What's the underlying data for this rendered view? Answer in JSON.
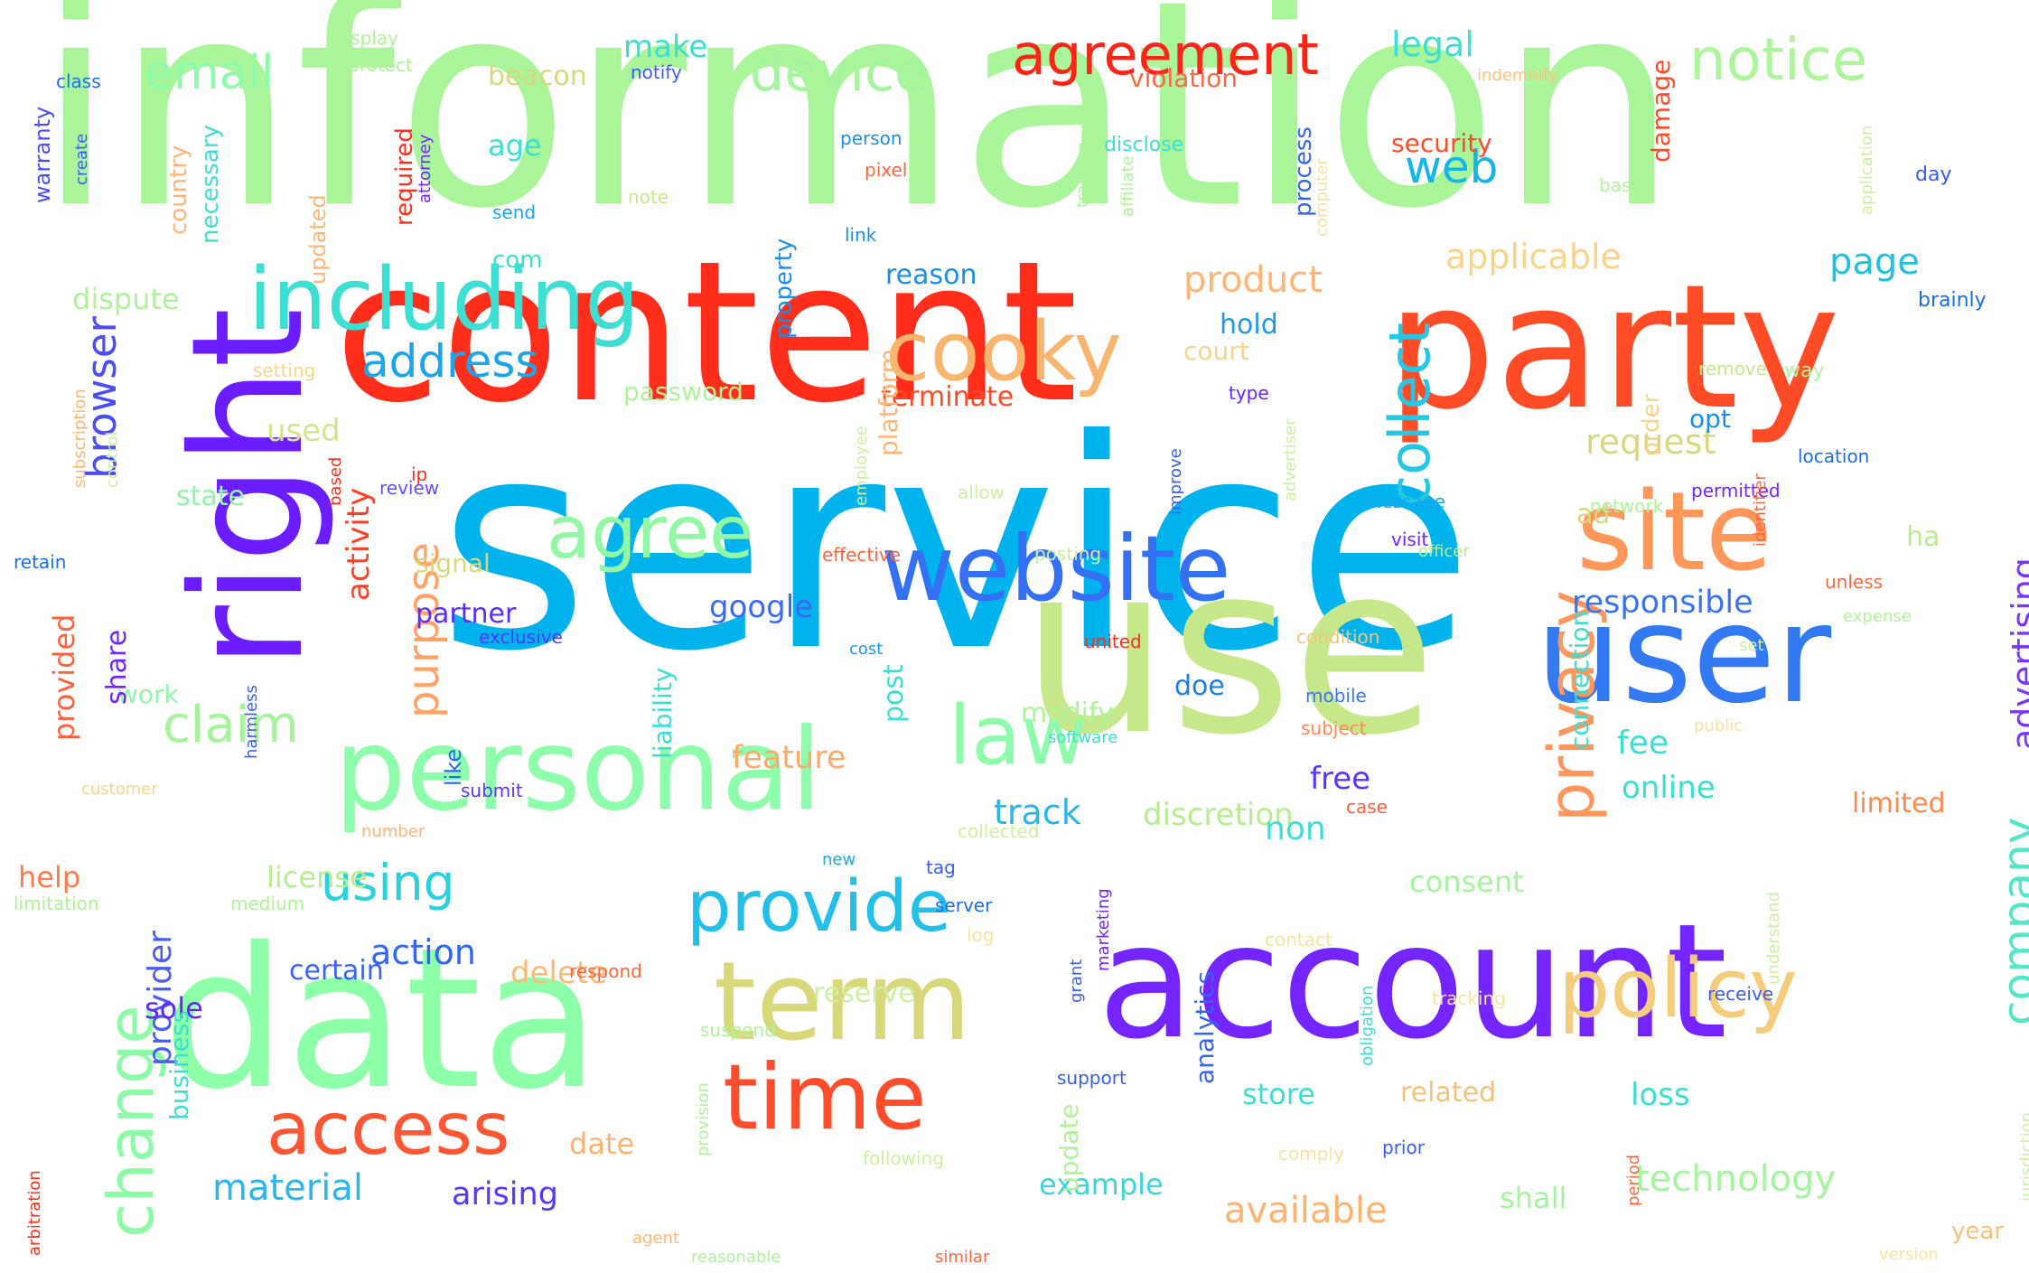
{
  "words": [
    {
      "text": "information",
      "color": "#aaf59a",
      "weight": 100
    },
    {
      "text": "service",
      "color": "#00b3ec",
      "weight": 98
    },
    {
      "text": "content",
      "color": "#ff2d1a",
      "weight": 80
    },
    {
      "text": "use",
      "color": "#c6e88a",
      "weight": 78
    },
    {
      "text": "data",
      "color": "#8effa9",
      "weight": 70
    },
    {
      "text": "account",
      "color": "#7424ff",
      "weight": 66
    },
    {
      "text": "party",
      "color": "#ff4c26",
      "weight": 64
    },
    {
      "text": "right",
      "color": "#6b1dff",
      "weight": 64
    },
    {
      "text": "user",
      "color": "#3279f2",
      "weight": 52
    },
    {
      "text": "personal",
      "color": "#8dfcab",
      "weight": 42
    },
    {
      "text": "site",
      "color": "#ff965a",
      "weight": 40
    },
    {
      "text": "website",
      "color": "#3370f4",
      "weight": 36
    },
    {
      "text": "term",
      "color": "#d8d87a",
      "weight": 40
    },
    {
      "text": "including",
      "color": "#3ddfd2",
      "weight": 34
    },
    {
      "text": "cooky",
      "color": "#f8b56e",
      "weight": 32
    },
    {
      "text": "time",
      "color": "#ff4c2a",
      "weight": 34
    },
    {
      "text": "policy",
      "color": "#f4cd7c",
      "weight": 30
    },
    {
      "text": "access",
      "color": "#ff5633",
      "weight": 28
    },
    {
      "text": "law",
      "color": "#8dfbab",
      "weight": 30
    },
    {
      "text": "agree",
      "color": "#92f7a4",
      "weight": 28
    },
    {
      "text": "provide",
      "color": "#22c0e8",
      "weight": 26
    },
    {
      "text": "change",
      "color": "#8dfaa8",
      "weight": 26
    },
    {
      "text": "privacy",
      "color": "#ff965c",
      "weight": 24
    },
    {
      "text": "collect",
      "color": "#24c8e4",
      "weight": 22
    },
    {
      "text": "agreement",
      "color": "#ff2516",
      "weight": 22
    },
    {
      "text": "device",
      "color": "#a4f59d",
      "weight": 22
    },
    {
      "text": "notice",
      "color": "#adf59a",
      "weight": 22
    },
    {
      "text": "email",
      "color": "#8dfbab",
      "weight": 18
    },
    {
      "text": "company",
      "color": "#52e7c7",
      "weight": 18
    },
    {
      "text": "address",
      "color": "#1aa6ec",
      "weight": 18
    },
    {
      "text": "claim",
      "color": "#a5f49c",
      "weight": 18
    },
    {
      "text": "using",
      "color": "#2bd1dc",
      "weight": 18
    },
    {
      "text": "browser",
      "color": "#4a4df9",
      "weight": 18
    },
    {
      "text": "purpose",
      "color": "#ffa466",
      "weight": 16
    },
    {
      "text": "web",
      "color": "#12b6ea",
      "weight": 16
    },
    {
      "text": "advertising",
      "color": "#7d33ff",
      "weight": 14
    },
    {
      "text": "technology",
      "color": "#a4f59d",
      "weight": 14
    },
    {
      "text": "available",
      "color": "#ffb370",
      "weight": 14
    },
    {
      "text": "material",
      "color": "#2eb6ec",
      "weight": 14
    },
    {
      "text": "product",
      "color": "#ffb575",
      "weight": 14
    },
    {
      "text": "applicable",
      "color": "#f6d48a",
      "weight": 14
    },
    {
      "text": "request",
      "color": "#d9d77e",
      "weight": 14
    },
    {
      "text": "responsible",
      "color": "#3a73f1",
      "weight": 12
    },
    {
      "text": "activity",
      "color": "#ff3e24",
      "weight": 12
    },
    {
      "text": "feature",
      "color": "#ffa966",
      "weight": 12
    },
    {
      "text": "track",
      "color": "#2db5ea",
      "weight": 12
    },
    {
      "text": "action",
      "color": "#3466f2",
      "weight": 12
    },
    {
      "text": "page",
      "color": "#24c0e2",
      "weight": 12
    },
    {
      "text": "provider",
      "color": "#4a5cf6",
      "weight": 12
    },
    {
      "text": "discretion",
      "color": "#b7ec90",
      "weight": 12
    },
    {
      "text": "arising",
      "color": "#5a34ff",
      "weight": 12
    },
    {
      "text": "example",
      "color": "#3fd5d6",
      "weight": 12
    },
    {
      "text": "shall",
      "color": "#a4f59d",
      "weight": 12
    },
    {
      "text": "date",
      "color": "#ffb270",
      "weight": 10
    },
    {
      "text": "certain",
      "color": "#3a64f2",
      "weight": 10
    },
    {
      "text": "delete",
      "color": "#ffb972",
      "weight": 10
    },
    {
      "text": "reserve",
      "color": "#ccefa0",
      "weight": 10
    },
    {
      "text": "google",
      "color": "#3a6af2",
      "weight": 10
    },
    {
      "text": "partner",
      "color": "#5b2bff",
      "weight": 10
    },
    {
      "text": "legal",
      "color": "#3ddfd2",
      "weight": 10
    },
    {
      "text": "make",
      "color": "#3ddfd2",
      "weight": 10
    },
    {
      "text": "security",
      "color": "#ff4a28",
      "weight": 9
    },
    {
      "text": "age",
      "color": "#3ddfd2",
      "weight": 9
    },
    {
      "text": "reason",
      "color": "#1a8ee8",
      "weight": 9
    },
    {
      "text": "hold",
      "color": "#1f98ea",
      "weight": 9
    },
    {
      "text": "court",
      "color": "#f6d48a",
      "weight": 9
    },
    {
      "text": "terminate",
      "color": "#ff4a28",
      "weight": 9
    },
    {
      "text": "password",
      "color": "#aef39a",
      "weight": 9
    },
    {
      "text": "state",
      "color": "#8ff6aa",
      "weight": 9
    },
    {
      "text": "used",
      "color": "#d0e58a",
      "weight": 9
    },
    {
      "text": "dispute",
      "color": "#aef39a",
      "weight": 9
    },
    {
      "text": "beacon",
      "color": "#d8d67e",
      "weight": 9
    },
    {
      "text": "violation",
      "color": "#ff6640",
      "weight": 9
    },
    {
      "text": "com",
      "color": "#3ddfd2",
      "weight": 9
    },
    {
      "text": "opt",
      "color": "#1a8ee8",
      "weight": 9
    },
    {
      "text": "ad",
      "color": "#d9d77e",
      "weight": 9
    },
    {
      "text": "ha",
      "color": "#b7ec90",
      "weight": 9
    },
    {
      "text": "doe",
      "color": "#1b7ee8",
      "weight": 9
    },
    {
      "text": "fee",
      "color": "#3ddfd2",
      "weight": 9
    },
    {
      "text": "free",
      "color": "#5a34ff",
      "weight": 9
    },
    {
      "text": "online",
      "color": "#3ddfd2",
      "weight": 9
    },
    {
      "text": "limited",
      "color": "#ff8a50",
      "weight": 8
    },
    {
      "text": "loss",
      "color": "#3ddfd2",
      "weight": 9
    },
    {
      "text": "related",
      "color": "#f4c27a",
      "weight": 8
    },
    {
      "text": "store",
      "color": "#3ddfd2",
      "weight": 8
    },
    {
      "text": "sole",
      "color": "#6424ff",
      "weight": 8
    },
    {
      "text": "help",
      "color": "#ff7b4a",
      "weight": 8
    },
    {
      "text": "license",
      "color": "#b7ec90",
      "weight": 8
    },
    {
      "text": "non",
      "color": "#3ddfd2",
      "weight": 9
    },
    {
      "text": "consent",
      "color": "#a4f59d",
      "weight": 9
    },
    {
      "text": "modify",
      "color": "#aef39a",
      "weight": 8
    },
    {
      "text": "like",
      "color": "#1a6ef0",
      "weight": 7
    },
    {
      "text": "signal",
      "color": "#d9d77e",
      "weight": 7
    },
    {
      "text": "work",
      "color": "#8ff6aa",
      "weight": 7
    },
    {
      "text": "year",
      "color": "#f4c27a",
      "weight": 7
    },
    {
      "text": "submit",
      "color": "#5a34ff",
      "weight": 5
    },
    {
      "text": "software",
      "color": "#3ddfd2",
      "weight": 5
    },
    {
      "text": "mobile",
      "color": "#3a73f1",
      "weight": 5
    },
    {
      "text": "subject",
      "color": "#ff8a50",
      "weight": 5
    },
    {
      "text": "public",
      "color": "#f6e2a0",
      "weight": 5
    },
    {
      "text": "case",
      "color": "#ff5f3a",
      "weight": 5
    },
    {
      "text": "cost",
      "color": "#1f98ea",
      "weight": 5
    },
    {
      "text": "exclusive",
      "color": "#5a34ff",
      "weight": 5
    },
    {
      "text": "united",
      "color": "#ff2d1a",
      "weight": 5
    },
    {
      "text": "condition",
      "color": "#f4c27a",
      "weight": 5
    },
    {
      "text": "effective",
      "color": "#ff6640",
      "weight": 5
    },
    {
      "text": "posting",
      "color": "#ccefa0",
      "weight": 5
    },
    {
      "text": "visit",
      "color": "#7424ff",
      "weight": 5
    },
    {
      "text": "officer",
      "color": "#b7ec90",
      "weight": 5
    },
    {
      "text": "message",
      "color": "#1aa6ec",
      "weight": 5
    },
    {
      "text": "network",
      "color": "#aef39a",
      "weight": 5
    },
    {
      "text": "permitted",
      "color": "#7424ff",
      "weight": 5
    },
    {
      "text": "location",
      "color": "#1a6ef0",
      "weight": 5
    },
    {
      "text": "allow",
      "color": "#ccefa0",
      "weight": 5
    },
    {
      "text": "review",
      "color": "#6a4cff",
      "weight": 5
    },
    {
      "text": "ip",
      "color": "#ff2d1a",
      "weight": 5
    },
    {
      "text": "type",
      "color": "#6424ff",
      "weight": 5
    },
    {
      "text": "setting",
      "color": "#f6d48a",
      "weight": 5
    },
    {
      "text": "remove",
      "color": "#c6e88a",
      "weight": 5
    },
    {
      "text": "way",
      "color": "#aef39a",
      "weight": 5
    },
    {
      "text": "brainly",
      "color": "#1a6ef0",
      "weight": 5
    },
    {
      "text": "day",
      "color": "#3a5ef2",
      "weight": 5
    },
    {
      "text": "basis",
      "color": "#aef39a",
      "weight": 5
    },
    {
      "text": "disclose",
      "color": "#3ddfd2",
      "weight": 5
    },
    {
      "text": "person",
      "color": "#1a8ee8",
      "weight": 5
    },
    {
      "text": "pixel",
      "color": "#ff6640",
      "weight": 5
    },
    {
      "text": "note",
      "color": "#c6e88a",
      "weight": 5
    },
    {
      "text": "link",
      "color": "#1a8ee8",
      "weight": 5
    },
    {
      "text": "send",
      "color": "#1aa6ec",
      "weight": 5
    },
    {
      "text": "class",
      "color": "#1a6ef0",
      "weight": 5
    },
    {
      "text": "display",
      "color": "#aef39a",
      "weight": 5
    },
    {
      "text": "protect",
      "color": "#aef39a",
      "weight": 5
    },
    {
      "text": "notify",
      "color": "#3a5ef2",
      "weight": 5
    },
    {
      "text": "indemnify",
      "color": "#ffc082",
      "weight": 5
    },
    {
      "text": "retain",
      "color": "#1a6ef0",
      "weight": 5
    },
    {
      "text": "customer",
      "color": "#f6d48a",
      "weight": 5
    },
    {
      "text": "number",
      "color": "#ffb575",
      "weight": 5
    },
    {
      "text": "collected",
      "color": "#ccefa0",
      "weight": 5
    },
    {
      "text": "new",
      "color": "#1aa6ec",
      "weight": 5
    },
    {
      "text": "tag",
      "color": "#3a5ef2",
      "weight": 5
    },
    {
      "text": "server",
      "color": "#1a6ef0",
      "weight": 5
    },
    {
      "text": "log",
      "color": "#f6e2a0",
      "weight": 5
    },
    {
      "text": "contact",
      "color": "#f6e2a0",
      "weight": 5
    },
    {
      "text": "respond",
      "color": "#ff6640",
      "weight": 5
    },
    {
      "text": "limitation",
      "color": "#aef39a",
      "weight": 5
    },
    {
      "text": "medium",
      "color": "#aef39a",
      "weight": 5
    },
    {
      "text": "tracking",
      "color": "#f6e2a0",
      "weight": 5
    },
    {
      "text": "receive",
      "color": "#3a5ef2",
      "weight": 5
    },
    {
      "text": "suspend",
      "color": "#aef39a",
      "weight": 5
    },
    {
      "text": "support",
      "color": "#3a5ef2",
      "weight": 5
    },
    {
      "text": "following",
      "color": "#ccefa0",
      "weight": 5
    },
    {
      "text": "comply",
      "color": "#f6e2a0",
      "weight": 5
    },
    {
      "text": "prior",
      "color": "#3a5ef2",
      "weight": 5
    },
    {
      "text": "agent",
      "color": "#ffb575",
      "weight": 5
    },
    {
      "text": "reasonable",
      "color": "#aef39a",
      "weight": 5
    },
    {
      "text": "similar",
      "color": "#ff6640",
      "weight": 5
    },
    {
      "text": "version",
      "color": "#f6e2a0",
      "weight": 5
    },
    {
      "text": "expense",
      "color": "#aef39a",
      "weight": 5
    },
    {
      "text": "set",
      "color": "#ccefa0",
      "weight": 5
    },
    {
      "text": "unless",
      "color": "#ff6640",
      "weight": 5
    },
    {
      "text": "share",
      "color": "#7424ff",
      "weight": 9
    },
    {
      "text": "provided",
      "color": "#ff5f3a",
      "weight": 9
    },
    {
      "text": "business",
      "color": "#3ddfd2",
      "weight": 8
    },
    {
      "text": "liability",
      "color": "#3ddfd2",
      "weight": 8
    },
    {
      "text": "post",
      "color": "#3ddfd2",
      "weight": 8
    },
    {
      "text": "connection",
      "color": "#3ddfd2",
      "weight": 8
    },
    {
      "text": "update",
      "color": "#aef39a",
      "weight": 8
    },
    {
      "text": "analytics",
      "color": "#3466f2",
      "weight": 8
    },
    {
      "text": "platform",
      "color": "#ffb575",
      "weight": 8
    },
    {
      "text": "property",
      "color": "#1a8ee8",
      "weight": 8
    },
    {
      "text": "process",
      "color": "#3466f2",
      "weight": 8
    },
    {
      "text": "damage",
      "color": "#ff4a28",
      "weight": 8
    },
    {
      "text": "order",
      "color": "#f6d48a",
      "weight": 8
    },
    {
      "text": "required",
      "color": "#ff2d1a",
      "weight": 7
    },
    {
      "text": "updated",
      "color": "#ffb575",
      "weight": 7
    },
    {
      "text": "country",
      "color": "#ffb575",
      "weight": 7
    },
    {
      "text": "necessary",
      "color": "#3ddfd2",
      "weight": 7
    },
    {
      "text": "warranty",
      "color": "#4a4df9",
      "weight": 7
    },
    {
      "text": "create",
      "color": "#3a5ef2",
      "weight": 5
    },
    {
      "text": "attorney",
      "color": "#7424ff",
      "weight": 5
    },
    {
      "text": "transfer",
      "color": "#aef39a",
      "weight": 5
    },
    {
      "text": "affiliate",
      "color": "#aef39a",
      "weight": 5
    },
    {
      "text": "computer",
      "color": "#f6e2a0",
      "weight": 5
    },
    {
      "text": "application",
      "color": "#ccefa0",
      "weight": 5
    },
    {
      "text": "subscription",
      "color": "#ffb575",
      "weight": 5
    },
    {
      "text": "control",
      "color": "#ccefa0",
      "weight": 5
    },
    {
      "text": "based",
      "color": "#ff2d1a",
      "weight": 5
    },
    {
      "text": "employee",
      "color": "#ccefa0",
      "weight": 5
    },
    {
      "text": "improve",
      "color": "#3a5ef2",
      "weight": 5
    },
    {
      "text": "advertiser",
      "color": "#ccefa0",
      "weight": 5
    },
    {
      "text": "identifier",
      "color": "#ff6640",
      "weight": 5
    },
    {
      "text": "harmless",
      "color": "#3a5ef2",
      "weight": 5
    },
    {
      "text": "marketing",
      "color": "#7424ff",
      "weight": 5
    },
    {
      "text": "grant",
      "color": "#3a5ef2",
      "weight": 5
    },
    {
      "text": "obligation",
      "color": "#3ddfd2",
      "weight": 5
    },
    {
      "text": "provision",
      "color": "#aef39a",
      "weight": 5
    },
    {
      "text": "understand",
      "color": "#ccefa0",
      "weight": 5
    },
    {
      "text": "period",
      "color": "#ff6640",
      "weight": 5
    },
    {
      "text": "jurisdiction",
      "color": "#ccefa0",
      "weight": 5
    },
    {
      "text": "arbitration",
      "color": "#ff2d1a",
      "weight": 5
    }
  ]
}
